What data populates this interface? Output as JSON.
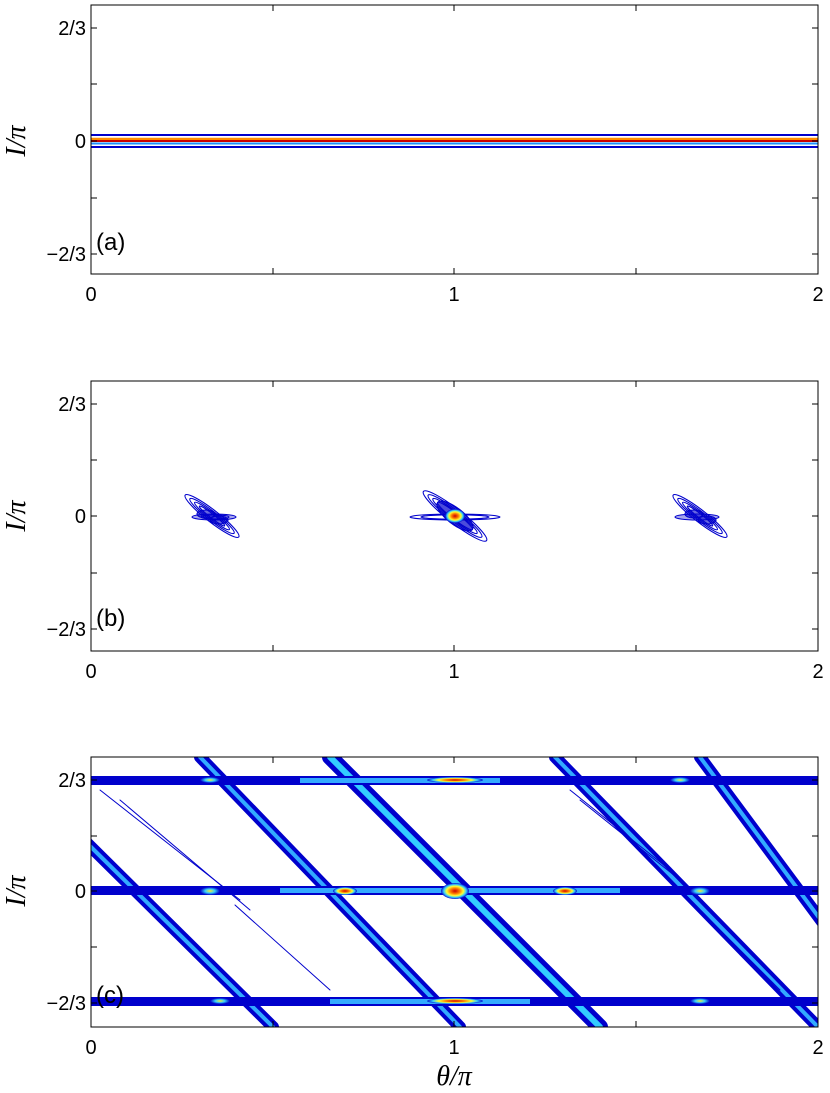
{
  "figure": {
    "panels": [
      "(a)",
      "(b)",
      "(c)"
    ]
  },
  "chart_data": [
    {
      "type": "contour",
      "panel_label": "(a)",
      "title": "",
      "xlabel": "",
      "ylabel": "I/π",
      "xlim": [
        0,
        2
      ],
      "ylim": [
        -0.78,
        0.78
      ],
      "x_ticks": [
        0,
        1,
        2
      ],
      "x_tick_labels": [
        "0",
        "1",
        "2"
      ],
      "y_ticks": [
        0.6667,
        0,
        -0.6667
      ],
      "y_tick_labels": [
        "2/3",
        "0",
        "−2/3"
      ],
      "bands": [
        {
          "name": "",
          "y": 0.018,
          "color": "#0000cc"
        },
        {
          "name": "",
          "y": 0.006,
          "color": "#ff8c00"
        },
        {
          "name": "",
          "y": 0.0,
          "color": "#cc0000"
        },
        {
          "name": "",
          "y": -0.006,
          "color": "#1e90ff"
        },
        {
          "name": "",
          "y": -0.02,
          "color": "#0000cc"
        }
      ]
    },
    {
      "type": "contour",
      "panel_label": "(b)",
      "title": "",
      "xlabel": "",
      "ylabel": "I/π",
      "xlim": [
        0,
        2
      ],
      "ylim": [
        -0.78,
        0.78
      ],
      "x_ticks": [
        0,
        1,
        2
      ],
      "x_tick_labels": [
        "0",
        "1",
        "2"
      ],
      "y_ticks": [
        0.6667,
        0,
        -0.6667
      ],
      "y_tick_labels": [
        "2/3",
        "0",
        "−2/3"
      ],
      "peaks": [
        {
          "theta": 0.333,
          "I": 0.0,
          "peak": "low"
        },
        {
          "theta": 1.0,
          "I": 0.0,
          "peak": "high"
        },
        {
          "theta": 1.667,
          "I": 0.0,
          "peak": "low"
        }
      ]
    },
    {
      "type": "contour",
      "panel_label": "(c)",
      "title": "",
      "xlabel": "θ/π",
      "ylabel": "I/π",
      "xlim": [
        0,
        2
      ],
      "ylim": [
        -0.78,
        0.78
      ],
      "x_ticks": [
        0,
        1,
        2
      ],
      "x_tick_labels": [
        "0",
        "1",
        "2"
      ],
      "y_ticks": [
        0.6667,
        0,
        -0.6667
      ],
      "y_tick_labels": [
        "2/3",
        "0",
        "−2/3"
      ],
      "horizontal_bands": [
        0.6667,
        0.0,
        -0.6667
      ],
      "diagonal_ridges": [
        {
          "from": [
            -0.2,
            0.78
          ],
          "to": [
            0.5,
            -0.78
          ]
        },
        {
          "from": [
            0.3,
            0.78
          ],
          "to": [
            1.0,
            -0.78
          ]
        },
        {
          "from": [
            0.65,
            0.78
          ],
          "to": [
            1.35,
            -0.78
          ]
        },
        {
          "from": [
            1.3,
            0.78
          ],
          "to": [
            2.0,
            -0.78
          ]
        },
        {
          "from": [
            1.65,
            0.78
          ],
          "to": [
            2.35,
            -0.78
          ]
        }
      ],
      "hot_spots": [
        {
          "theta": 1.0,
          "I": 0.0
        },
        {
          "theta": 1.0,
          "I": 0.6667
        },
        {
          "theta": 1.0,
          "I": -0.6667
        }
      ]
    }
  ]
}
